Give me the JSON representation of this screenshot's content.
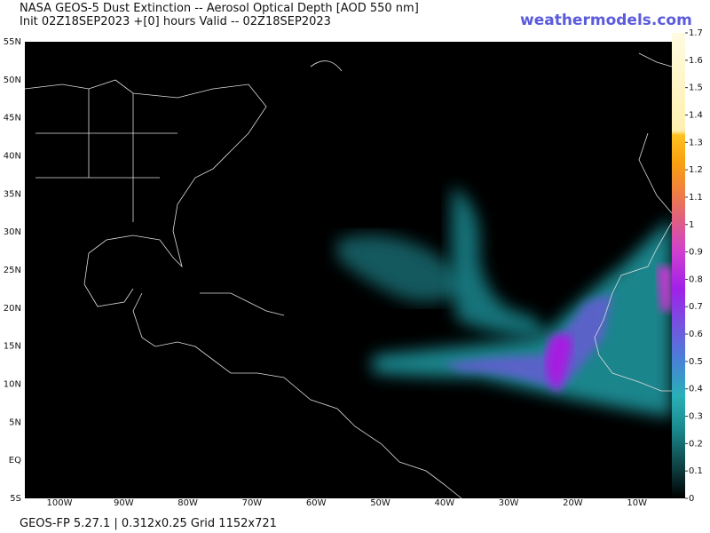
{
  "header": {
    "title": "NASA GEOS-5 Dust Extinction -- Aerosol Optical Depth [AOD 550 nm]",
    "subtitle": "Init 02Z18SEP2023 +[0] hours Valid -- 02Z18SEP2023",
    "logo": "weathermodels.com"
  },
  "map": {
    "lat_labels": [
      "55N",
      "50N",
      "45N",
      "40N",
      "35N",
      "30N",
      "25N",
      "20N",
      "15N",
      "10N",
      "5N",
      "EQ",
      "5S"
    ],
    "lon_labels": [
      "100W",
      "90W",
      "80W",
      "70W",
      "60W",
      "50W",
      "40W",
      "30W",
      "20W",
      "10W"
    ]
  },
  "colorbar": {
    "lim": [
      0,
      1.7
    ],
    "ticks": [
      0,
      0.1,
      0.2,
      0.3,
      0.4,
      0.5,
      0.6,
      0.7,
      0.8,
      0.9,
      1,
      1.1,
      1.2,
      1.3,
      1.4,
      1.5,
      1.6,
      1.7
    ]
  },
  "footer": "GEOS-FP 5.27.1 | 0.312x0.25 Grid 1152x721"
}
